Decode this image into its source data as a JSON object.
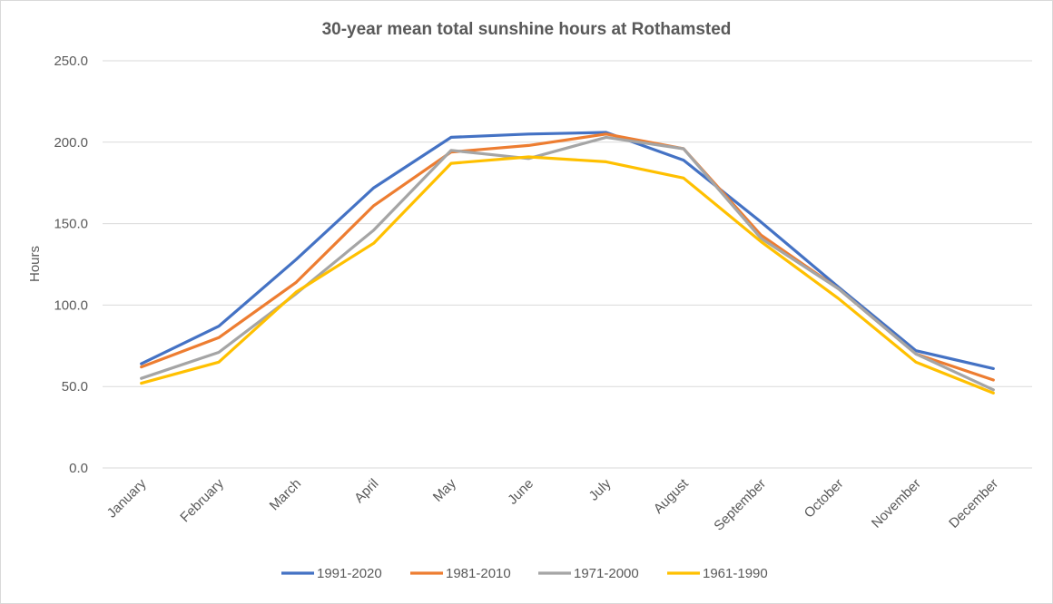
{
  "chart_data": {
    "type": "line",
    "title": "30-year mean total sunshine hours at Rothamsted",
    "ylabel": "Hours",
    "xlabel": "",
    "ylim": [
      0,
      250
    ],
    "yticks": [
      "0.0",
      "50.0",
      "100.0",
      "150.0",
      "200.0",
      "250.0"
    ],
    "ytick_values": [
      0,
      50,
      100,
      150,
      200,
      250
    ],
    "grid": true,
    "legend_position": "bottom",
    "categories": [
      "January",
      "February",
      "March",
      "April",
      "May",
      "June",
      "July",
      "August",
      "September",
      "October",
      "November",
      "December"
    ],
    "series": [
      {
        "name": "1991-2020",
        "color": "#4472C4",
        "values": [
          64,
          87,
          128,
          172,
          203,
          205,
          206,
          189,
          151,
          111,
          72,
          61
        ]
      },
      {
        "name": "1981-2010",
        "color": "#ED7D31",
        "values": [
          62,
          80,
          114,
          161,
          194,
          198,
          205,
          196,
          143,
          110,
          70,
          54
        ]
      },
      {
        "name": "1971-2000",
        "color": "#A5A5A5",
        "values": [
          55,
          71,
          107,
          146,
          195,
          190,
          203,
          196,
          141,
          110,
          70,
          48
        ]
      },
      {
        "name": "1961-1990",
        "color": "#FFC000",
        "values": [
          52,
          65,
          108,
          138,
          187,
          191,
          188,
          178,
          139,
          104,
          65,
          46
        ]
      }
    ]
  }
}
